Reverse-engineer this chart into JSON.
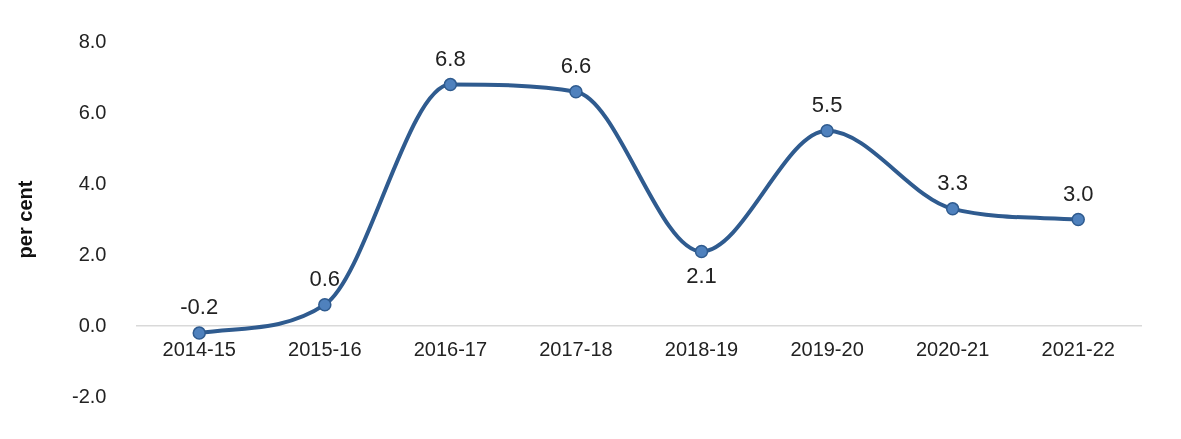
{
  "chart_data": {
    "type": "line",
    "ylabel": "per cent",
    "categories": [
      "2014-15",
      "2015-16",
      "2016-17",
      "2017-18",
      "2018-19",
      "2019-20",
      "2020-21",
      "2021-22"
    ],
    "series": [
      {
        "color": "#2f5b8f",
        "values": [
          -0.2,
          0.6,
          6.8,
          6.6,
          2.1,
          5.5,
          3.3,
          3.0
        ],
        "value_labels": [
          "-0.2",
          "0.6",
          "6.8",
          "6.6",
          "2.1",
          "5.5",
          "3.3",
          "3.0"
        ]
      }
    ],
    "ylim": [
      -2,
      8
    ],
    "yticks": [
      {
        "value": -2,
        "label": "-2.0"
      },
      {
        "value": 0,
        "label": "0.0"
      },
      {
        "value": 2,
        "label": "2.0"
      },
      {
        "value": 4,
        "label": "4.0"
      },
      {
        "value": 6,
        "label": "6.0"
      },
      {
        "value": 8,
        "label": "8.0"
      }
    ],
    "grid": false,
    "legend": false,
    "marker": "circle",
    "line_style": "solid"
  }
}
